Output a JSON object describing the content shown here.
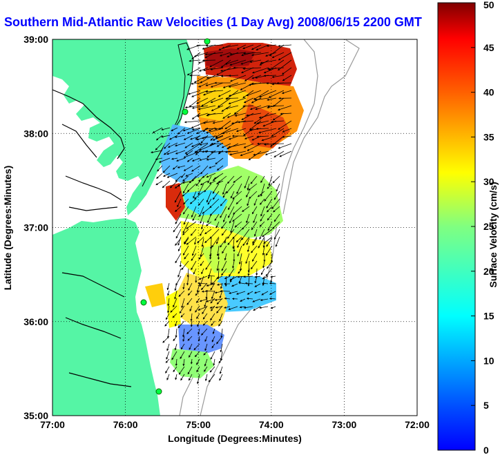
{
  "title": "Southern Mid-Atlantic Raw Velocities (1 Day Avg) 2008/06/15 2200 GMT",
  "map": {
    "xlabel": "Longitude (Degrees:Minutes)",
    "ylabel": "Latitude (Degrees:Minutes)",
    "x_ticks": [
      "77:00",
      "76:00",
      "75:00",
      "74:00",
      "73:00",
      "72:00"
    ],
    "y_ticks": [
      "39:00",
      "38:00",
      "37:00",
      "36:00",
      "35:00"
    ],
    "lon_range": [
      -77,
      -72
    ],
    "lat_range": [
      35,
      39
    ],
    "land_color": "#55f5a5",
    "grid": true
  },
  "colorbar": {
    "label": "Surface Velocity (cm/s)",
    "ticks": [
      "0",
      "5",
      "10",
      "15",
      "20",
      "25",
      "30",
      "35",
      "40",
      "45",
      "50"
    ],
    "range": [
      0,
      50
    ],
    "colormap": "jet"
  }
}
